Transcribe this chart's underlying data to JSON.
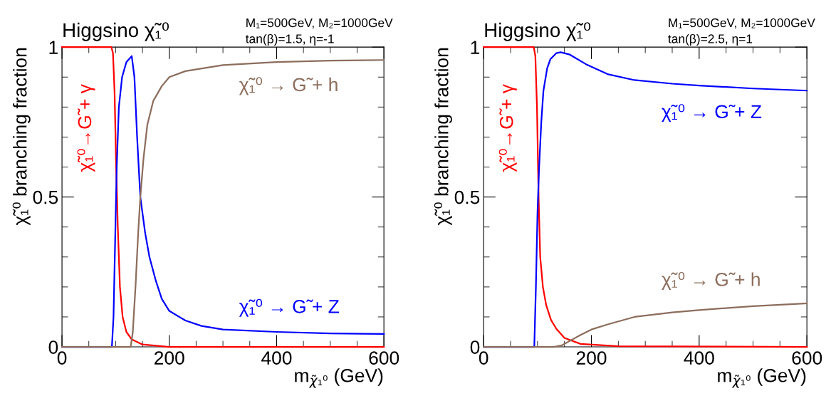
{
  "chart_data": [
    {
      "type": "line",
      "title": "Higgsino χ̃₁⁰",
      "subtitle": "M₁=500GeV, M₂=1000GeV\ntan(β)=1.5, η=-1",
      "xlabel": "m$_{χ̃₁⁰}$ (GeV)",
      "ylabel": "χ̃₁⁰ branching fraction",
      "xlim": [
        0,
        600
      ],
      "xticks": [
        0,
        200,
        400,
        600
      ],
      "ylim": [
        0,
        1
      ],
      "yticks": [
        0,
        0.5,
        1
      ],
      "grid": false,
      "legend": false,
      "marker": "none",
      "line_style": "solid",
      "series": [
        {
          "name": "χ̃₁⁰→G̃ + γ",
          "color": "#ff0000",
          "x": [
            0,
            92,
            95,
            98,
            101,
            104,
            108,
            113,
            120,
            130,
            150,
            200,
            600
          ],
          "values": [
            1,
            1,
            0.98,
            0.85,
            0.6,
            0.4,
            0.2,
            0.1,
            0.05,
            0.025,
            0.008,
            0,
            0
          ]
        },
        {
          "name": "χ̃₁⁰ → G̃ + Z",
          "color": "#0000ff",
          "x": [
            0,
            93,
            96,
            99,
            102,
            106,
            112,
            120,
            130,
            135,
            140,
            146,
            155,
            163,
            175,
            186,
            200,
            230,
            260,
            300,
            400,
            500,
            600
          ],
          "values": [
            0,
            0,
            0.1,
            0.35,
            0.6,
            0.8,
            0.9,
            0.95,
            0.97,
            0.9,
            0.7,
            0.5,
            0.38,
            0.3,
            0.22,
            0.16,
            0.12,
            0.088,
            0.07,
            0.058,
            0.05,
            0.045,
            0.043
          ]
        },
        {
          "name": "χ̃₁⁰ → G̃ + h",
          "color": "#8c6d5c",
          "x": [
            0,
            128,
            132,
            137,
            142,
            146,
            152,
            159,
            170,
            186,
            200,
            230,
            300,
            400,
            500,
            600
          ],
          "values": [
            0,
            0,
            0.05,
            0.2,
            0.38,
            0.5,
            0.63,
            0.74,
            0.82,
            0.87,
            0.9,
            0.92,
            0.94,
            0.95,
            0.955,
            0.957
          ]
        }
      ]
    },
    {
      "type": "line",
      "title": "Higgsino χ̃₁⁰",
      "subtitle": "M₁=500GeV, M₂=1000GeV\ntan(β)=2.5, η=1",
      "xlabel": "m$_{χ̃₁⁰}$ (GeV)",
      "ylabel": "χ̃₁⁰ branching fraction",
      "xlim": [
        0,
        600
      ],
      "xticks": [
        0,
        200,
        400,
        600
      ],
      "ylim": [
        0,
        1
      ],
      "yticks": [
        0,
        0.5,
        1
      ],
      "grid": false,
      "legend": false,
      "marker": "none",
      "line_style": "solid",
      "series": [
        {
          "name": "χ̃₁⁰→G̃ + γ",
          "color": "#ff0000",
          "x": [
            0,
            93,
            96,
            99,
            102,
            105,
            110,
            116,
            125,
            135,
            150,
            180,
            250,
            600
          ],
          "values": [
            1,
            1,
            0.97,
            0.8,
            0.5,
            0.3,
            0.2,
            0.14,
            0.09,
            0.06,
            0.03,
            0.01,
            0.002,
            0
          ]
        },
        {
          "name": "χ̃₁⁰ → G̃ + Z",
          "color": "#0000ff",
          "x": [
            0,
            94,
            97,
            100,
            103,
            107,
            111,
            118,
            124,
            135,
            143,
            160,
            190,
            230,
            280,
            350,
            400,
            500,
            600
          ],
          "values": [
            0,
            0,
            0.2,
            0.45,
            0.6,
            0.75,
            0.855,
            0.93,
            0.96,
            0.98,
            0.983,
            0.975,
            0.943,
            0.91,
            0.89,
            0.878,
            0.872,
            0.862,
            0.855
          ]
        },
        {
          "name": "χ̃₁⁰ → G̃ + h",
          "color": "#8c6d5c",
          "x": [
            0,
            130,
            145,
            160,
            180,
            200,
            230,
            280,
            350,
            400,
            500,
            600
          ],
          "values": [
            0,
            0,
            0.005,
            0.02,
            0.04,
            0.058,
            0.075,
            0.1,
            0.115,
            0.123,
            0.136,
            0.145
          ]
        }
      ]
    }
  ]
}
